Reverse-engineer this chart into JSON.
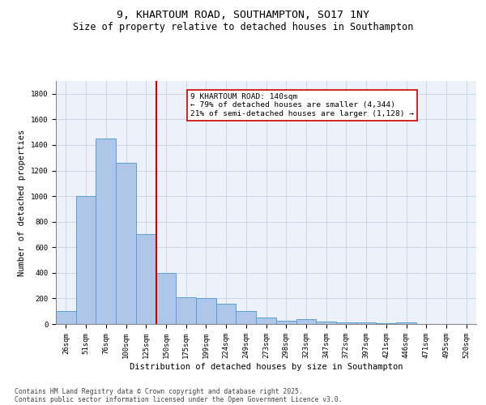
{
  "title_line1": "9, KHARTOUM ROAD, SOUTHAMPTON, SO17 1NY",
  "title_line2": "Size of property relative to detached houses in Southampton",
  "xlabel": "Distribution of detached houses by size in Southampton",
  "ylabel": "Number of detached properties",
  "categories": [
    "26sqm",
    "51sqm",
    "76sqm",
    "100sqm",
    "125sqm",
    "150sqm",
    "175sqm",
    "199sqm",
    "224sqm",
    "249sqm",
    "273sqm",
    "298sqm",
    "323sqm",
    "347sqm",
    "372sqm",
    "397sqm",
    "421sqm",
    "446sqm",
    "471sqm",
    "495sqm",
    "520sqm"
  ],
  "values": [
    100,
    1000,
    1450,
    1260,
    700,
    400,
    210,
    205,
    160,
    100,
    50,
    25,
    40,
    20,
    15,
    10,
    5,
    10,
    0,
    0,
    0
  ],
  "bar_color": "#aec6e8",
  "bar_edge_color": "#5a9fd4",
  "vline_x_idx": 4,
  "vline_color": "#cc0000",
  "annotation_line1": "9 KHARTOUM ROAD: 140sqm",
  "annotation_line2": "← 79% of detached houses are smaller (4,344)",
  "annotation_line3": "21% of semi-detached houses are larger (1,128) →",
  "annotation_box_color": "#cc0000",
  "annotation_box_fill": "#ffffff",
  "ylim": [
    0,
    1900
  ],
  "yticks": [
    0,
    200,
    400,
    600,
    800,
    1000,
    1200,
    1400,
    1600,
    1800
  ],
  "grid_color": "#c8d0e0",
  "background_color": "#edf2fa",
  "footer_line1": "Contains HM Land Registry data © Crown copyright and database right 2025.",
  "footer_line2": "Contains public sector information licensed under the Open Government Licence v3.0.",
  "title_fontsize": 9.5,
  "subtitle_fontsize": 8.5,
  "axis_label_fontsize": 7.5,
  "tick_fontsize": 6.5,
  "annotation_fontsize": 6.8,
  "footer_fontsize": 5.8
}
